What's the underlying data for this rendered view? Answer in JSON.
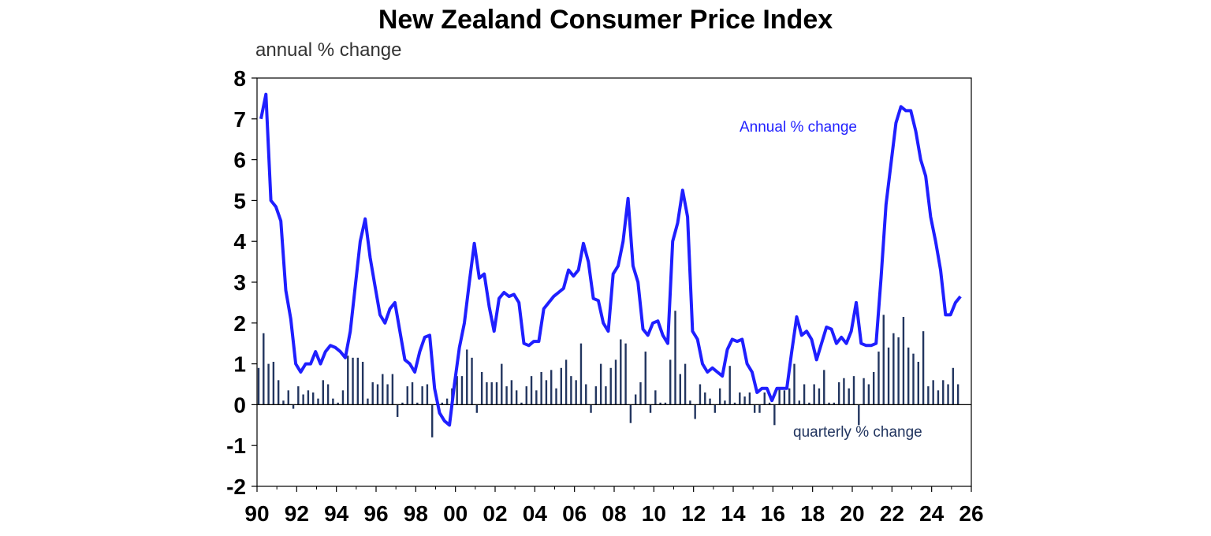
{
  "chart_data": {
    "type": "line",
    "title": "New Zealand Consumer Price Index",
    "ylabel": "annual % change",
    "ylim": [
      -2,
      8
    ],
    "yticks": [
      "-2",
      "-1",
      "0",
      "1",
      "2",
      "3",
      "4",
      "5",
      "6",
      "7",
      "8"
    ],
    "xlim": [
      1990,
      2026
    ],
    "xticks": [
      "90",
      "92",
      "94",
      "96",
      "98",
      "00",
      "02",
      "04",
      "06",
      "08",
      "10",
      "12",
      "14",
      "16",
      "18",
      "20",
      "22",
      "24",
      "26"
    ],
    "grid": false,
    "annotations": {
      "annual": "Annual % change",
      "quarterly": "quarterly % change"
    },
    "colors": {
      "annual": "#1f1fff",
      "quarterly": "#22355f",
      "axis": "#000000"
    },
    "series": [
      {
        "key": "annual",
        "type": "line",
        "start": 1990.0,
        "step": 0.25,
        "values": [
          7.0,
          7.6,
          5.0,
          4.85,
          4.5,
          2.8,
          2.1,
          1.0,
          0.8,
          1.0,
          1.0,
          1.3,
          1.0,
          1.3,
          1.45,
          1.4,
          1.3,
          1.15,
          1.8,
          2.9,
          4.0,
          4.55,
          3.6,
          2.9,
          2.2,
          2.0,
          2.35,
          2.5,
          1.8,
          1.1,
          1.0,
          0.8,
          1.3,
          1.65,
          1.7,
          0.4,
          -0.2,
          -0.4,
          -0.5,
          0.5,
          1.4,
          2.0,
          3.0,
          3.95,
          3.1,
          3.2,
          2.4,
          1.8,
          2.6,
          2.75,
          2.65,
          2.7,
          2.5,
          1.5,
          1.45,
          1.55,
          1.55,
          2.35,
          2.5,
          2.65,
          2.75,
          2.85,
          3.3,
          3.15,
          3.3,
          3.95,
          3.5,
          2.6,
          2.55,
          2.0,
          1.8,
          3.2,
          3.4,
          4.0,
          5.05,
          3.4,
          3.0,
          1.85,
          1.7,
          2.0,
          2.05,
          1.7,
          1.5,
          4.0,
          4.45,
          5.25,
          4.6,
          1.8,
          1.6,
          1.0,
          0.8,
          0.9,
          0.8,
          0.7,
          1.35,
          1.6,
          1.55,
          1.6,
          1.0,
          0.8,
          0.3,
          0.4,
          0.4,
          0.1,
          0.4,
          0.4,
          0.4,
          1.3,
          2.15,
          1.7,
          1.8,
          1.6,
          1.1,
          1.5,
          1.9,
          1.85,
          1.5,
          1.65,
          1.5,
          1.8,
          2.5,
          1.5,
          1.45,
          1.45,
          1.5,
          3.1,
          4.9,
          5.9,
          6.9,
          7.3,
          7.2,
          7.2,
          6.7,
          6.0,
          5.6,
          4.6,
          4.0,
          3.3,
          2.2,
          2.2,
          2.5,
          2.65
        ]
      },
      {
        "key": "quarterly",
        "type": "bar",
        "start": 1990.0,
        "step": 0.25,
        "values": [
          0.9,
          1.75,
          1.0,
          1.05,
          0.6,
          0.1,
          0.35,
          -0.1,
          0.45,
          0.25,
          0.35,
          0.3,
          0.15,
          0.6,
          0.5,
          0.15,
          0.05,
          0.35,
          1.2,
          1.15,
          1.15,
          1.05,
          0.15,
          0.55,
          0.5,
          0.75,
          0.5,
          0.75,
          -0.3,
          0.05,
          0.45,
          0.55,
          0.05,
          0.45,
          0.5,
          -0.8,
          0.05,
          0.05,
          0.15,
          0.4,
          0.7,
          0.7,
          1.35,
          1.15,
          -0.2,
          0.8,
          0.55,
          0.55,
          0.55,
          1.0,
          0.45,
          0.6,
          0.35,
          0.05,
          0.45,
          0.7,
          0.35,
          0.8,
          0.6,
          0.85,
          0.4,
          0.9,
          1.1,
          0.7,
          0.6,
          1.5,
          0.5,
          -0.2,
          0.45,
          1.0,
          0.45,
          0.9,
          1.1,
          1.6,
          1.5,
          -0.45,
          0.25,
          0.55,
          1.3,
          -0.2,
          0.35,
          0.05,
          0.05,
          1.1,
          2.3,
          0.75,
          1.0,
          0.1,
          -0.35,
          0.5,
          0.3,
          0.15,
          -0.2,
          0.4,
          0.1,
          0.95,
          0.05,
          0.3,
          0.2,
          0.3,
          -0.2,
          -0.2,
          0.3,
          0.05,
          -0.5,
          0.4,
          0.35,
          0.4,
          1.0,
          0.1,
          0.5,
          0.05,
          0.5,
          0.4,
          0.85,
          0.05,
          0.05,
          0.55,
          0.65,
          0.4,
          0.7,
          -0.5,
          0.65,
          0.5,
          0.8,
          1.3,
          2.2,
          1.4,
          1.75,
          1.65,
          2.15,
          1.4,
          1.25,
          1.05,
          1.8,
          0.45,
          0.6,
          0.35,
          0.6,
          0.5,
          0.9,
          0.5
        ]
      }
    ]
  }
}
